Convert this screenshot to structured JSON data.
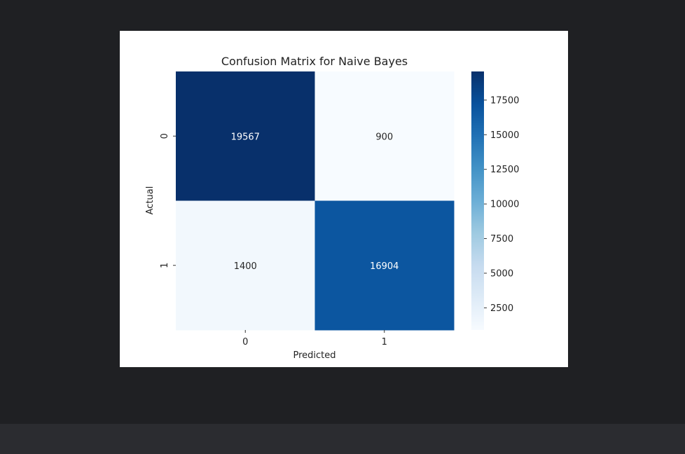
{
  "chart_data": {
    "type": "heatmap",
    "title": "Confusion Matrix for Naive Bayes",
    "xlabel": "Predicted",
    "ylabel": "Actual",
    "x_categories": [
      "0",
      "1"
    ],
    "y_categories": [
      "0",
      "1"
    ],
    "values": [
      [
        19567,
        900
      ],
      [
        1400,
        16904
      ]
    ],
    "colormap": "Blues",
    "colorbar": {
      "range": [
        900,
        19567
      ],
      "ticks": [
        2500,
        5000,
        7500,
        10000,
        12500,
        15000,
        17500
      ]
    },
    "annotations": true
  }
}
